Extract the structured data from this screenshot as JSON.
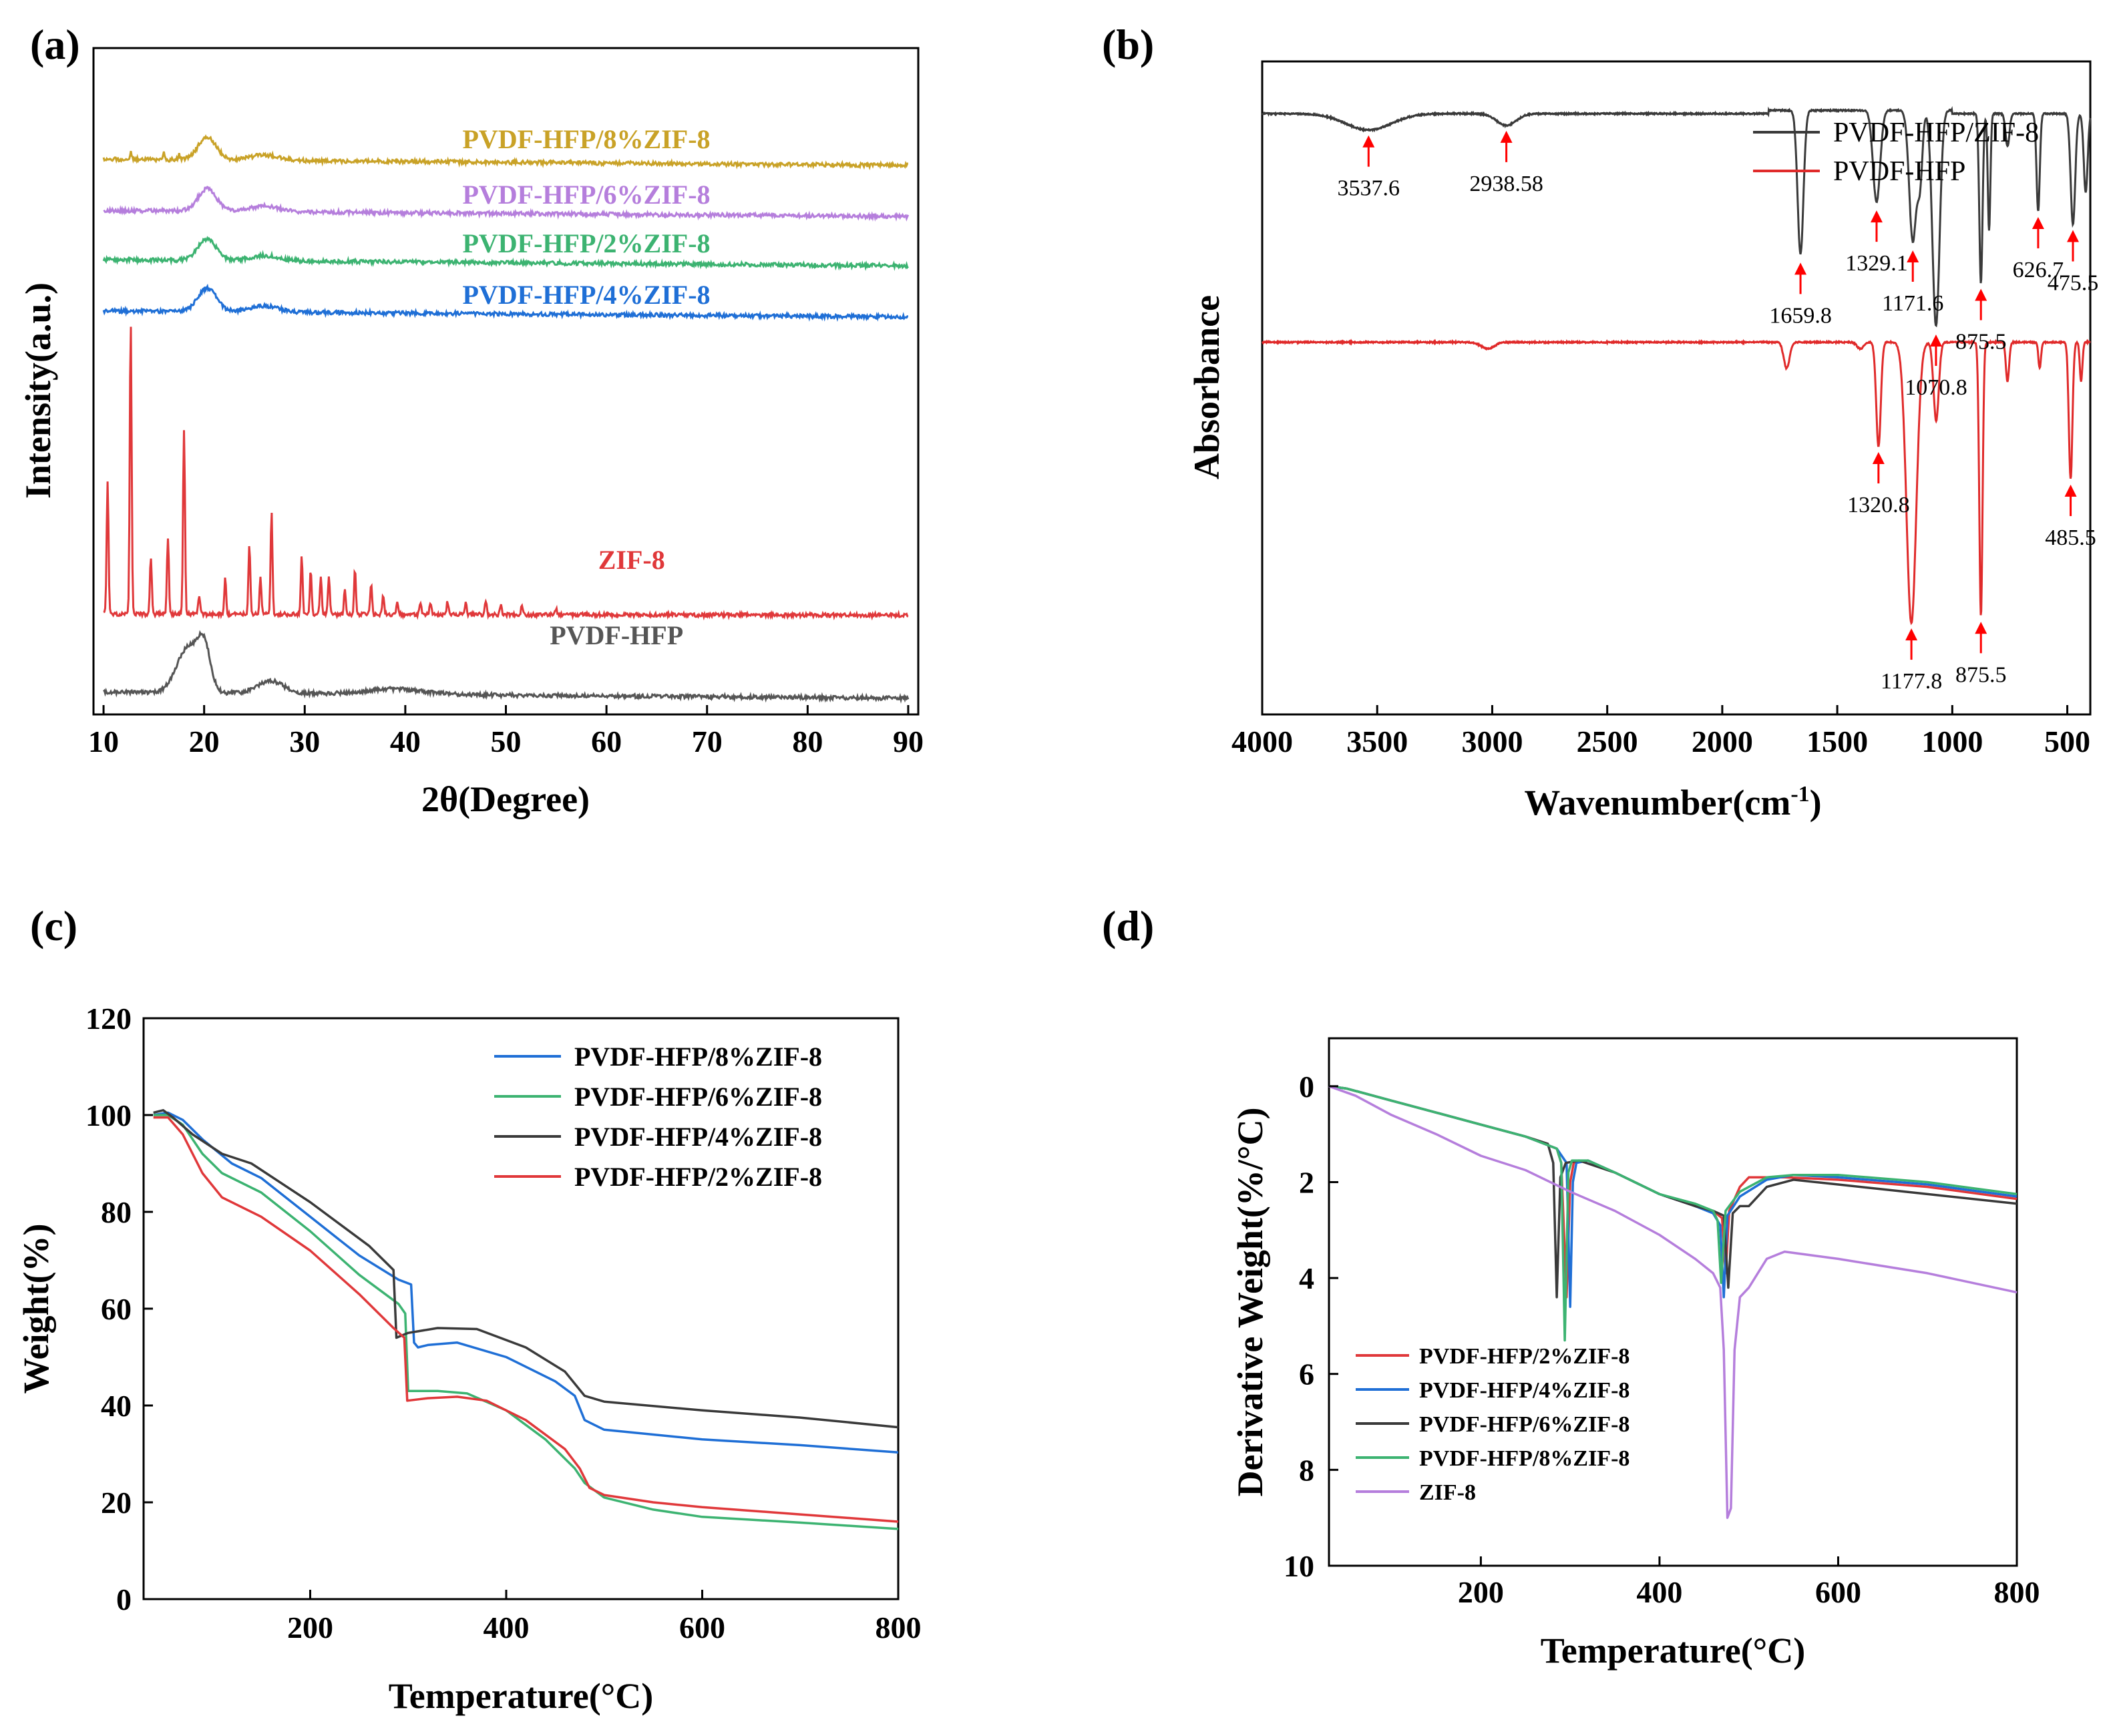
{
  "panels": {
    "a": {
      "label": "(a)"
    },
    "b": {
      "label": "(b)"
    },
    "c": {
      "label": "(c)"
    },
    "d": {
      "label": "(d)"
    }
  },
  "chart_data": [
    {
      "id": "a",
      "type": "line",
      "title": "",
      "xlabel": "2θ(Degree)",
      "ylabel": "Intensity(a.u.)",
      "xlim": [
        9,
        91
      ],
      "xticks": [
        10,
        20,
        30,
        40,
        50,
        60,
        70,
        80,
        90
      ],
      "y_ticks_shown": false,
      "grid": false,
      "legend": "inline labels at right",
      "series": [
        {
          "name": "PVDF-HFP/8%ZIF-8",
          "color": "#c9a227",
          "offset": 0.845,
          "amp": 0.035,
          "peaks": [
            [
              20.3,
              1.0,
              1.3
            ],
            [
              26,
              0.25,
              2
            ]
          ],
          "sharp": [
            [
              12.7,
              0.3
            ],
            [
              16,
              0.3
            ],
            [
              17.5,
              0.25
            ]
          ]
        },
        {
          "name": "PVDF-HFP/6%ZIF-8",
          "color": "#b57edc",
          "offset": 0.765,
          "amp": 0.035,
          "peaks": [
            [
              20.3,
              1.0,
              1.3
            ],
            [
              26,
              0.25,
              2
            ]
          ],
          "sharp": []
        },
        {
          "name": "PVDF-HFP/2%ZIF-8",
          "color": "#3cb371",
          "offset": 0.688,
          "amp": 0.033,
          "peaks": [
            [
              20.3,
              1.0,
              1.3
            ],
            [
              26,
              0.25,
              2
            ]
          ],
          "sharp": []
        },
        {
          "name": "PVDF-HFP/4%ZIF-8",
          "color": "#1f6fd6",
          "offset": 0.608,
          "amp": 0.037,
          "peaks": [
            [
              20.3,
              1.0,
              1.3
            ],
            [
              26,
              0.25,
              2
            ]
          ],
          "sharp": []
        },
        {
          "name": "ZIF-8",
          "color": "#e0383a",
          "offset": 0.134,
          "amp": 1.0,
          "peaks": [],
          "sharp": [
            [
              10.4,
              0.21
            ],
            [
              12.7,
              0.46
            ],
            [
              14.7,
              0.09
            ],
            [
              16.4,
              0.12
            ],
            [
              18.0,
              0.29
            ],
            [
              19.5,
              0.03
            ],
            [
              22.1,
              0.06
            ],
            [
              24.5,
              0.11
            ],
            [
              25.6,
              0.06
            ],
            [
              26.7,
              0.16
            ],
            [
              29.7,
              0.09
            ],
            [
              30.6,
              0.07
            ],
            [
              31.6,
              0.06
            ],
            [
              32.4,
              0.06
            ],
            [
              34.0,
              0.04
            ],
            [
              35.0,
              0.07
            ],
            [
              36.6,
              0.05
            ],
            [
              37.8,
              0.03
            ],
            [
              39.2,
              0.02
            ],
            [
              41.5,
              0.02
            ],
            [
              42.5,
              0.02
            ],
            [
              44.2,
              0.02
            ],
            [
              46.0,
              0.02
            ],
            [
              48.0,
              0.02
            ],
            [
              49.5,
              0.015
            ],
            [
              51.6,
              0.015
            ],
            [
              55.0,
              0.01
            ]
          ]
        },
        {
          "name": "PVDF-HFP",
          "color": "#555555",
          "offset": 0.012,
          "amp": 0.07,
          "peaks": [
            [
              18.4,
              1.0,
              1.6
            ],
            [
              20.0,
              0.9,
              0.9
            ],
            [
              26.6,
              0.28,
              1.8
            ],
            [
              39.0,
              0.12,
              4
            ]
          ],
          "sharp": []
        }
      ],
      "labels": [
        {
          "text": "PVDF-HFP/8%ZIF-8",
          "color": "#c9a227",
          "x": 58
        },
        {
          "text": "PVDF-HFP/6%ZIF-8",
          "color": "#b57edc",
          "x": 58
        },
        {
          "text": "PVDF-HFP/2%ZIF-8",
          "color": "#3cb371",
          "x": 58
        },
        {
          "text": "PVDF-HFP/4%ZIF-8",
          "color": "#1f6fd6",
          "x": 58
        },
        {
          "text": "ZIF-8",
          "color": "#e0383a",
          "x": 62.5
        },
        {
          "text": "PVDF-HFP",
          "color": "#555555",
          "x": 61
        }
      ]
    },
    {
      "id": "b",
      "type": "line",
      "title": "",
      "xlabel": "Wavenumber(cm",
      "xlabel_sup": "-1",
      "xlabel_end": ")",
      "ylabel": "Absorbance",
      "xlim": [
        4000,
        400
      ],
      "xticks": [
        4000,
        3500,
        3000,
        2500,
        2000,
        1500,
        1000,
        500
      ],
      "y_ticks_shown": false,
      "grid": false,
      "legend": "top-right",
      "series": [
        {
          "name": "PVDF-HFP/ZIF-8",
          "color": "#3a3a3a",
          "baseline": 0.92,
          "bands": [
            [
              3537.6,
              0.025,
              140
            ],
            [
              2938.58,
              0.018,
              60
            ],
            [
              1659.8,
              0.22,
              18
            ],
            [
              1329.1,
              0.14,
              22
            ],
            [
              1171.6,
              0.2,
              22
            ],
            [
              1070.8,
              0.33,
              22
            ],
            [
              1140,
              0.1,
              15
            ],
            [
              875.5,
              0.26,
              10
            ],
            [
              840,
              0.18,
              8
            ],
            [
              760,
              0.05,
              12
            ],
            [
              626.7,
              0.15,
              10
            ],
            [
              475.5,
              0.17,
              14
            ],
            [
              420,
              0.12,
              12
            ]
          ]
        },
        {
          "name": "PVDF-HFP",
          "color": "#e02a2a",
          "baseline": 0.57,
          "bands": [
            [
              3020,
              0.01,
              40
            ],
            [
              1720,
              0.04,
              18
            ],
            [
              1400,
              0.01,
              20
            ],
            [
              1320.8,
              0.16,
              14
            ],
            [
              1177.8,
              0.43,
              30
            ],
            [
              1070,
              0.12,
              16
            ],
            [
              875.5,
              0.42,
              10
            ],
            [
              760,
              0.06,
              10
            ],
            [
              620,
              0.04,
              8
            ],
            [
              485.5,
              0.21,
              11
            ],
            [
              440,
              0.06,
              8
            ]
          ]
        }
      ],
      "annotations": [
        {
          "text": "3537.6",
          "x": 3537.6,
          "series": 0
        },
        {
          "text": "2938.58",
          "x": 2938.58,
          "series": 0
        },
        {
          "text": "1659.8",
          "x": 1659.8,
          "series": 0
        },
        {
          "text": "1329.1",
          "x": 1329.1,
          "series": 0
        },
        {
          "text": "1171.6",
          "x": 1171.6,
          "series": 0
        },
        {
          "text": "1070.8",
          "x": 1070.8,
          "series": 0
        },
        {
          "text": "875.5",
          "x": 875.5,
          "series": 0
        },
        {
          "text": "626.7",
          "x": 626.7,
          "series": 0
        },
        {
          "text": "475.5",
          "x": 475.5,
          "series": 0
        },
        {
          "text": "1320.8",
          "x": 1320.8,
          "series": 1
        },
        {
          "text": "1177.8",
          "x": 1177.8,
          "series": 1
        },
        {
          "text": "875.5",
          "x": 875.5,
          "series": 1
        },
        {
          "text": "485.5",
          "x": 485.5,
          "series": 1
        }
      ]
    },
    {
      "id": "c",
      "type": "line",
      "title": "",
      "xlabel": "Temperature(°C)",
      "ylabel": "Weight(%)",
      "xlim": [
        30,
        800
      ],
      "ylim": [
        0,
        120
      ],
      "xticks": [
        200,
        400,
        600,
        800
      ],
      "yticks": [
        0,
        20,
        40,
        60,
        80,
        100,
        120
      ],
      "grid": false,
      "legend": "top-right",
      "series": [
        {
          "name": "PVDF-HFP/8%ZIF-8",
          "color": "#1f6fd6",
          "x": [
            40,
            55,
            70,
            90,
            120,
            150,
            200,
            250,
            290,
            303,
            306,
            310,
            320,
            350,
            400,
            450,
            470,
            480,
            500,
            600,
            700,
            800
          ],
          "y": [
            100,
            100.5,
            99,
            95,
            90,
            87,
            79,
            71,
            66,
            65,
            53,
            52,
            52.5,
            53,
            50,
            45,
            42,
            37,
            35,
            33,
            31.8,
            30.3
          ]
        },
        {
          "name": "PVDF-HFP/6%ZIF-8",
          "color": "#3cb371",
          "x": [
            40,
            55,
            70,
            90,
            110,
            150,
            200,
            250,
            290,
            297,
            300,
            330,
            360,
            400,
            440,
            470,
            480,
            500,
            550,
            600,
            700,
            800
          ],
          "y": [
            100,
            100,
            98,
            92,
            88,
            84,
            76,
            67,
            61,
            59,
            43,
            43,
            42.5,
            39,
            33,
            27,
            24,
            21,
            18.5,
            17,
            15.8,
            14.5
          ]
        },
        {
          "name": "PVDF-HFP/4%ZIF-8",
          "color": "#3a3a3a",
          "x": [
            40,
            50,
            60,
            80,
            110,
            140,
            200,
            260,
            285,
            288,
            300,
            330,
            370,
            420,
            460,
            480,
            500,
            600,
            700,
            800
          ],
          "y": [
            100.5,
            101,
            99.5,
            96,
            92,
            90,
            82,
            73,
            68,
            54,
            55,
            56,
            55.8,
            52,
            47,
            42,
            40.8,
            39,
            37.5,
            35.5
          ]
        },
        {
          "name": "PVDF-HFP/2%ZIF-8",
          "color": "#e0383a",
          "x": [
            40,
            55,
            70,
            90,
            110,
            150,
            200,
            250,
            285,
            296,
            299,
            320,
            350,
            380,
            420,
            460,
            475,
            485,
            500,
            550,
            600,
            700,
            800
          ],
          "y": [
            99.5,
            99.5,
            96,
            88,
            83,
            79,
            72,
            63,
            56,
            54,
            41,
            41.5,
            41.8,
            41,
            37,
            31,
            27,
            23,
            21.5,
            20,
            19,
            17.5,
            16
          ]
        }
      ]
    },
    {
      "id": "d",
      "type": "line",
      "title": "",
      "xlabel": "Temperature(°C)",
      "ylabel": "Derivative Weight(%/°C)",
      "xlim": [
        30,
        800
      ],
      "ylim": [
        -1,
        10
      ],
      "y_inverted": true,
      "xticks": [
        200,
        400,
        600,
        800
      ],
      "yticks": [
        0,
        2,
        4,
        6,
        8,
        10
      ],
      "grid": false,
      "legend": "bottom-left",
      "series": [
        {
          "name": "PVDF-HFP/2%ZIF-8",
          "color": "#e0383a",
          "x": [
            30,
            50,
            100,
            150,
            200,
            250,
            285,
            290,
            296,
            300,
            304,
            320,
            350,
            400,
            440,
            460,
            470,
            474,
            478,
            490,
            500,
            540,
            600,
            700,
            800
          ],
          "y": [
            0,
            0.05,
            0.3,
            0.55,
            0.8,
            1.05,
            1.3,
            1.6,
            4.4,
            2.0,
            1.6,
            1.55,
            1.8,
            2.25,
            2.5,
            2.6,
            2.75,
            3.9,
            2.6,
            2.1,
            1.9,
            1.9,
            1.95,
            2.1,
            2.35
          ]
        },
        {
          "name": "PVDF-HFP/4%ZIF-8",
          "color": "#1f6fd6",
          "x": [
            30,
            50,
            100,
            150,
            200,
            250,
            285,
            296,
            300,
            303,
            307,
            320,
            350,
            400,
            440,
            460,
            468,
            472,
            476,
            490,
            520,
            550,
            600,
            700,
            800
          ],
          "y": [
            0,
            0.05,
            0.3,
            0.55,
            0.8,
            1.05,
            1.3,
            1.6,
            4.6,
            2.0,
            1.6,
            1.55,
            1.8,
            2.25,
            2.5,
            2.65,
            2.9,
            4.4,
            2.7,
            2.3,
            1.95,
            1.85,
            1.9,
            2.05,
            2.3
          ]
        },
        {
          "name": "PVDF-HFP/6%ZIF-8",
          "color": "#3a3a3a",
          "x": [
            30,
            50,
            100,
            150,
            200,
            250,
            275,
            281,
            285,
            289,
            295,
            310,
            350,
            400,
            440,
            460,
            472,
            477,
            482,
            490,
            500,
            520,
            550,
            600,
            700,
            800
          ],
          "y": [
            0,
            0.05,
            0.3,
            0.55,
            0.8,
            1.05,
            1.2,
            1.6,
            4.4,
            1.9,
            1.6,
            1.55,
            1.8,
            2.25,
            2.5,
            2.6,
            2.7,
            4.2,
            2.65,
            2.5,
            2.5,
            2.1,
            1.95,
            2.05,
            2.25,
            2.45
          ]
        },
        {
          "name": "PVDF-HFP/8%ZIF-8",
          "color": "#3cb371",
          "x": [
            30,
            50,
            100,
            150,
            200,
            250,
            285,
            290,
            294,
            298,
            302,
            320,
            350,
            400,
            440,
            460,
            465,
            469,
            474,
            490,
            520,
            550,
            600,
            700,
            800
          ],
          "y": [
            0,
            0.05,
            0.3,
            0.55,
            0.8,
            1.05,
            1.3,
            1.6,
            5.3,
            1.8,
            1.55,
            1.55,
            1.8,
            2.25,
            2.45,
            2.6,
            2.8,
            4.1,
            2.6,
            2.2,
            1.9,
            1.85,
            1.85,
            2.0,
            2.25
          ]
        },
        {
          "name": "ZIF-8",
          "color": "#b57edc",
          "x": [
            30,
            60,
            100,
            150,
            200,
            250,
            300,
            350,
            400,
            440,
            460,
            468,
            472,
            476,
            480,
            484,
            490,
            500,
            520,
            540,
            600,
            700,
            800
          ],
          "y": [
            0,
            0.2,
            0.6,
            1.0,
            1.45,
            1.75,
            2.2,
            2.6,
            3.1,
            3.6,
            3.9,
            4.2,
            5.5,
            9.0,
            8.8,
            5.5,
            4.4,
            4.2,
            3.6,
            3.45,
            3.6,
            3.9,
            4.3
          ]
        }
      ]
    }
  ]
}
